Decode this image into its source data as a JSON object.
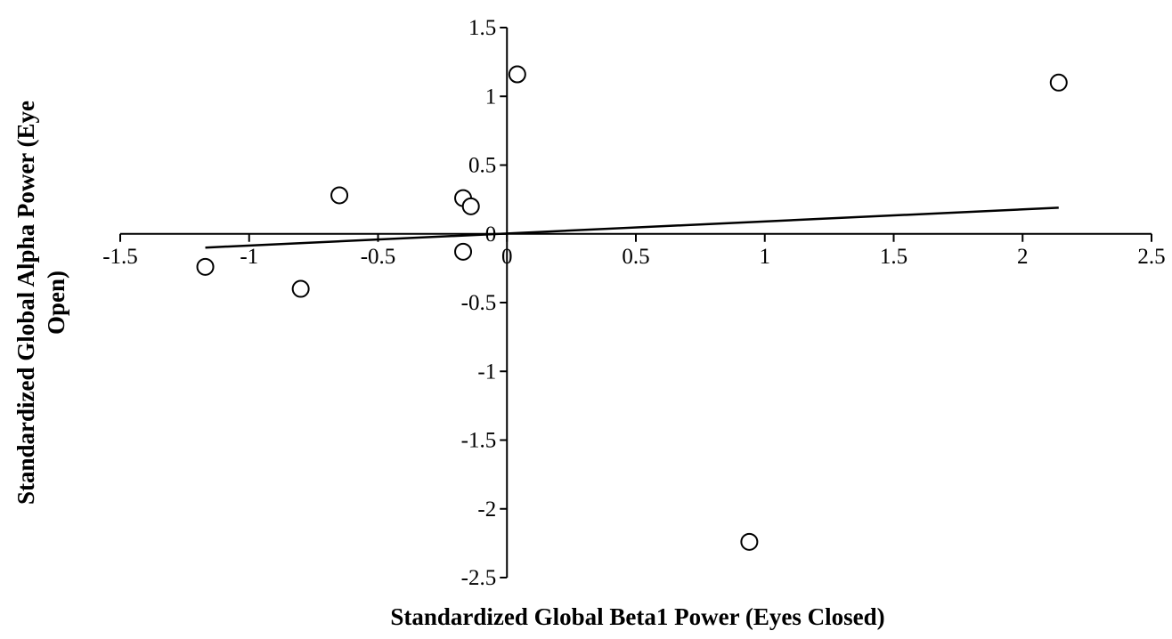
{
  "chart_data": {
    "type": "scatter",
    "title": "",
    "xlabel": "Standardized Global Beta1 Power (Eyes Closed)",
    "ylabel_lines": [
      "Standardized Global Alpha Power (Eye",
      "Open)"
    ],
    "xlim": [
      -1.5,
      2.5
    ],
    "ylim": [
      -2.5,
      1.5
    ],
    "x_ticks": [
      -1.5,
      -1,
      -0.5,
      0,
      0.5,
      1,
      1.5,
      2,
      2.5
    ],
    "y_ticks": [
      1.5,
      1,
      0.5,
      0,
      -0.5,
      -1,
      -1.5,
      -2,
      -2.5
    ],
    "x_tick_labels": [
      "-1.5",
      "-1",
      "-0.5",
      "0",
      "0.5",
      "1",
      "1.5",
      "2",
      "2.5"
    ],
    "y_tick_labels": [
      "1.5",
      "1",
      "0.5",
      "0",
      "-0.5",
      "-1",
      "-1.5",
      "-2",
      "-2.5"
    ],
    "grid": false,
    "legend": "none",
    "series": [
      {
        "marker": "open-circle",
        "color": "#000000",
        "points": [
          {
            "x": 0.04,
            "y": 1.16
          },
          {
            "x": 2.14,
            "y": 1.1
          },
          {
            "x": -0.65,
            "y": 0.28
          },
          {
            "x": -0.17,
            "y": 0.26
          },
          {
            "x": -0.14,
            "y": 0.2
          },
          {
            "x": -1.17,
            "y": -0.24
          },
          {
            "x": -0.8,
            "y": -0.4
          },
          {
            "x": -0.17,
            "y": -0.13
          },
          {
            "x": 0.94,
            "y": -2.24
          }
        ]
      }
    ],
    "trendline": {
      "type": "linear",
      "color": "#000000",
      "x": [
        -1.17,
        2.14
      ],
      "y": [
        -0.1,
        0.19
      ]
    }
  }
}
